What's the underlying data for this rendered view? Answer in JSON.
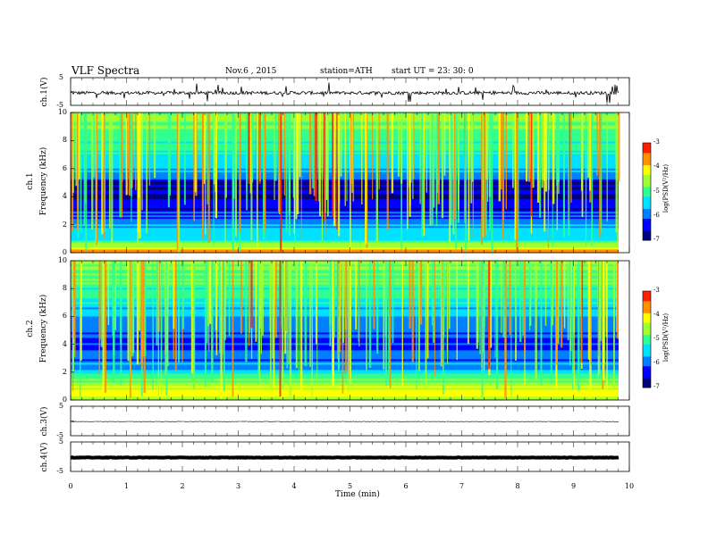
{
  "header": {
    "title": "VLF  Spectra",
    "date": "Nov.6  , 2015",
    "station": "station=ATH",
    "start": "start  UT  =   23: 30: 0"
  },
  "panels": {
    "ch1_wave": {
      "ylabel": "ch.1(V)",
      "yticks": [
        "5",
        "-5"
      ]
    },
    "ch1_spec": {
      "ylabel_a": "ch.1",
      "ylabel_b": "Frequency  (kHz)",
      "yticks": [
        "10",
        "8",
        "6",
        "4",
        "2",
        "0"
      ]
    },
    "ch2_spec": {
      "ylabel_a": "ch.2",
      "ylabel_b": "Frequency  (kHz)",
      "yticks": [
        "10",
        "8",
        "6",
        "4",
        "2",
        "0"
      ]
    },
    "ch3_wave": {
      "ylabel": "ch.3(V)",
      "yticks": [
        "5",
        "-5"
      ]
    },
    "ch4_wave": {
      "ylabel": "ch.4(V)",
      "yticks": [
        "5",
        "-5"
      ]
    }
  },
  "colorbar": {
    "title": "log(PSD(V²/Hz)",
    "ticks": [
      "-3",
      "-4",
      "-5",
      "-6",
      "-7"
    ],
    "range": [
      -7,
      -3
    ],
    "colors": [
      "#00007f",
      "#0000ff",
      "#0080ff",
      "#00e0ff",
      "#30ff90",
      "#a0ff30",
      "#ffff00",
      "#ff9000",
      "#ff2000",
      "#ffffff"
    ]
  },
  "xaxis": {
    "label": "Time  (min)",
    "ticks": [
      "0",
      "1",
      "2",
      "3",
      "4",
      "5",
      "6",
      "7",
      "8",
      "9",
      "10"
    ],
    "range": [
      0,
      10
    ],
    "data_end": 9.8
  },
  "chart_data": [
    {
      "type": "line",
      "title": "ch.1(V)",
      "ylim": [
        -5,
        5
      ],
      "series": [
        {
          "name": "ch.1",
          "values": [
            -0.5
          ]
        }
      ]
    },
    {
      "type": "heatmap",
      "title": "ch.1",
      "ylabel": "Frequency  (kHz)",
      "ylim": [
        0,
        10
      ],
      "xlim": [
        0,
        10
      ],
      "zlabel": "log(PSD(V²/Hz)",
      "zlim": [
        -7,
        -3
      ],
      "freq_profile_khz": [
        0,
        0.5,
        1,
        2,
        3,
        4,
        5,
        6,
        7,
        8,
        9,
        10
      ],
      "freq_profile_logpsd": [
        -3.5,
        -4.2,
        -5.2,
        -5.8,
        -6.3,
        -6.8,
        -6.6,
        -5.6,
        -5.2,
        -5.0,
        -4.8,
        -4.6
      ]
    },
    {
      "type": "heatmap",
      "title": "ch.2",
      "ylabel": "Frequency  (kHz)",
      "ylim": [
        0,
        10
      ],
      "xlim": [
        0,
        10
      ],
      "zlabel": "log(PSD(V²/Hz)",
      "zlim": [
        -7,
        -3
      ],
      "freq_profile_khz": [
        0,
        0.5,
        1,
        2,
        3,
        4,
        5,
        6,
        7,
        8,
        9,
        10
      ],
      "freq_profile_logpsd": [
        -4.5,
        -4.0,
        -4.5,
        -5.4,
        -6.0,
        -6.3,
        -6.1,
        -5.7,
        -5.3,
        -5.0,
        -4.8,
        -4.6
      ]
    },
    {
      "type": "line",
      "title": "ch.3(V)",
      "ylim": [
        -5,
        5
      ],
      "series": [
        {
          "name": "ch.3",
          "values": [
            -0.2
          ]
        }
      ]
    },
    {
      "type": "line",
      "title": "ch.4(V)",
      "ylim": [
        -5,
        5
      ],
      "series": [
        {
          "name": "ch.4",
          "values": [
            -0.3
          ]
        }
      ]
    }
  ]
}
